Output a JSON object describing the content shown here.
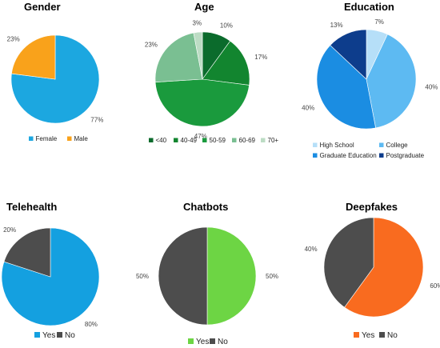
{
  "chart_data": [
    {
      "type": "pie",
      "title": "Gender",
      "slices": [
        {
          "label": "Female",
          "value": 77,
          "display": "77%",
          "color": "#1ca7e0"
        },
        {
          "label": "Male",
          "value": 23,
          "display": "23%",
          "color": "#f9a21b"
        }
      ],
      "legend": "bottom"
    },
    {
      "type": "pie",
      "title": "Age",
      "slices": [
        {
          "label": "<40",
          "value": 10,
          "display": "10%",
          "color": "#0b6b2c"
        },
        {
          "label": "40-49",
          "value": 17,
          "display": "17%",
          "color": "#12852f"
        },
        {
          "label": "50-59",
          "value": 47,
          "display": "47%",
          "color": "#1a9a3d"
        },
        {
          "label": "60-69",
          "value": 23,
          "display": "23%",
          "color": "#7abf92"
        },
        {
          "label": "70+",
          "value": 3,
          "display": "3%",
          "color": "#bcdcc4"
        }
      ],
      "legend": "bottom"
    },
    {
      "type": "pie",
      "title": "Education",
      "slices": [
        {
          "label": "High School",
          "value": 7,
          "display": "7%",
          "color": "#b6dff8"
        },
        {
          "label": "College",
          "value": 40,
          "display": "40%",
          "color": "#5dbaf2"
        },
        {
          "label": "Graduate Education",
          "value": 40,
          "display": "40%",
          "color": "#1b8de2"
        },
        {
          "label": "Postgraduate",
          "value": 13,
          "display": "13%",
          "color": "#0d3d8c"
        }
      ],
      "legend": "bottom"
    },
    {
      "type": "pie",
      "title": "Telehealth",
      "slices": [
        {
          "label": "Yes",
          "value": 80,
          "display": "80%",
          "color": "#14a0e0"
        },
        {
          "label": "No",
          "value": 20,
          "display": "20%",
          "color": "#4d4d4d"
        }
      ],
      "legend": "bottom"
    },
    {
      "type": "pie",
      "title": "Chatbots",
      "slices": [
        {
          "label": "Yes",
          "value": 50,
          "display": "50%",
          "color": "#6dd544"
        },
        {
          "label": "No",
          "value": 50,
          "display": "50%",
          "color": "#4d4d4d"
        }
      ],
      "legend": "bottom"
    },
    {
      "type": "pie",
      "title": "Deepfakes",
      "slices": [
        {
          "label": "Yes",
          "value": 60,
          "display": "60%",
          "color": "#f96b1f"
        },
        {
          "label": "No",
          "value": 40,
          "display": "40%",
          "color": "#4d4d4d"
        }
      ],
      "legend": "bottom"
    }
  ]
}
